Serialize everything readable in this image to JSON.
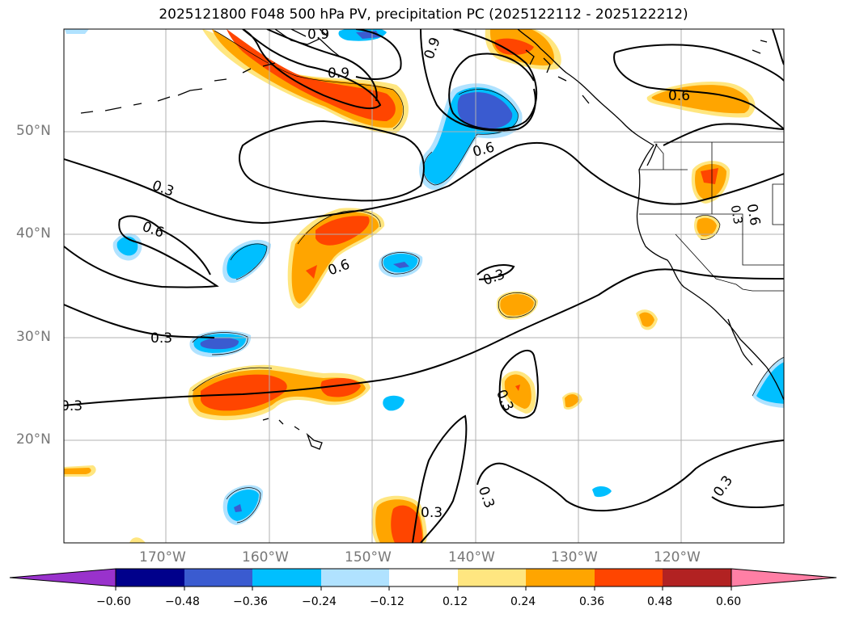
{
  "title": "2025121800 F048 500 hPa PV, precipitation PC (2025122112 - 2025122212)",
  "map": {
    "projection": "plate-carree",
    "lon_labels": [
      "170°W",
      "160°W",
      "150°W",
      "140°W",
      "130°W",
      "120°W"
    ],
    "lat_labels": [
      "50°N",
      "40°N",
      "30°N",
      "20°N"
    ],
    "contour_labels": [
      "0.9",
      "0.9",
      "0.9",
      "0.6",
      "0.6",
      "0.6",
      "0.6",
      "0.3",
      "0.3",
      "0.3",
      "0.3",
      "0.3",
      "0.3",
      "0.3",
      "0.3",
      "0.6",
      "0.3"
    ]
  },
  "colorbar": {
    "ticks": [
      "−0.60",
      "−0.48",
      "−0.36",
      "−0.24",
      "−0.12",
      "0.12",
      "0.24",
      "0.36",
      "0.48",
      "0.60"
    ],
    "colors": [
      "#9932cc",
      "#00008b",
      "#3a5bd0",
      "#00bfff",
      "#b0e2ff",
      "#ffffff",
      "#ffe680",
      "#ffa500",
      "#ff4500",
      "#b22222",
      "#ff7fa5"
    ]
  }
}
